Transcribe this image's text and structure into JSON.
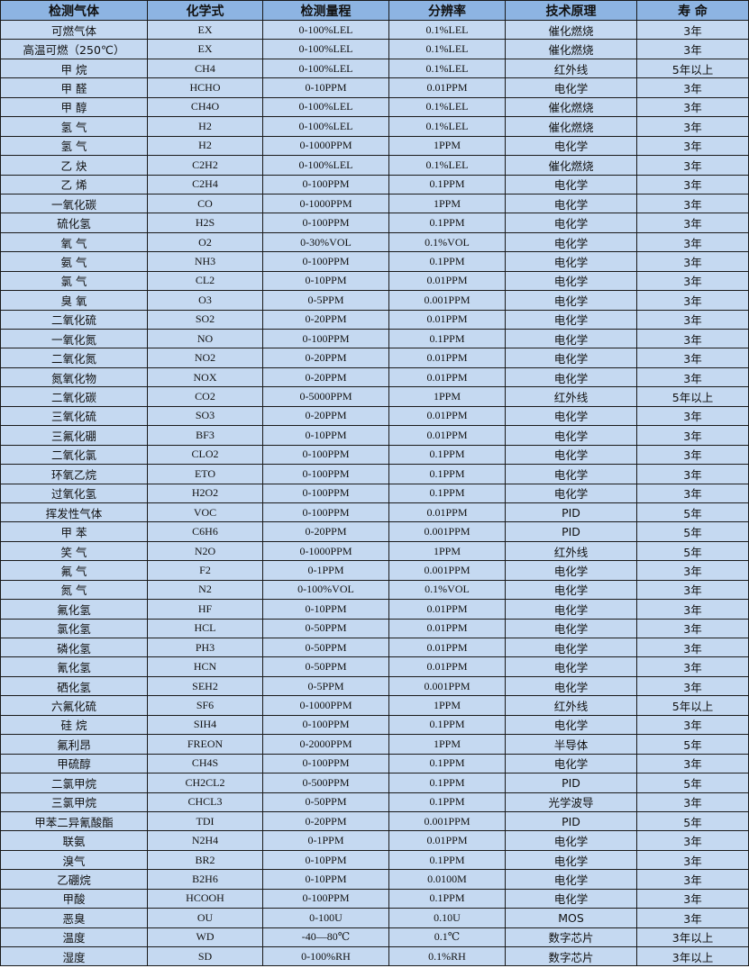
{
  "colors": {
    "header_bg": "#8db4e2",
    "row_bg": "#c5d9f1",
    "border": "#1a1a1a"
  },
  "table": {
    "headers": [
      "检测气体",
      "化学式",
      "检测量程",
      "分辨率",
      "技术原理",
      "寿 命"
    ],
    "rows": [
      [
        "可燃气体",
        "EX",
        "0-100%LEL",
        "0.1%LEL",
        "催化燃烧",
        "3年"
      ],
      [
        "高温可燃（250℃）",
        "EX",
        "0-100%LEL",
        "0.1%LEL",
        "催化燃烧",
        "3年"
      ],
      [
        "甲 烷",
        "CH4",
        "0-100%LEL",
        "0.1%LEL",
        "红外线",
        "5年以上"
      ],
      [
        "甲 醛",
        "HCHO",
        "0-10PPM",
        "0.01PPM",
        "电化学",
        "3年"
      ],
      [
        "甲 醇",
        "CH4O",
        "0-100%LEL",
        "0.1%LEL",
        "催化燃烧",
        "3年"
      ],
      [
        "氢 气",
        "H2",
        "0-100%LEL",
        "0.1%LEL",
        "催化燃烧",
        "3年"
      ],
      [
        "氢 气",
        "H2",
        "0-1000PPM",
        "1PPM",
        "电化学",
        "3年"
      ],
      [
        "乙 炔",
        "C2H2",
        "0-100%LEL",
        "0.1%LEL",
        "催化燃烧",
        "3年"
      ],
      [
        "乙 烯",
        "C2H4",
        "0-100PPM",
        "0.1PPM",
        "电化学",
        "3年"
      ],
      [
        "一氧化碳",
        "CO",
        "0-1000PPM",
        "1PPM",
        "电化学",
        "3年"
      ],
      [
        "硫化氢",
        "H2S",
        "0-100PPM",
        "0.1PPM",
        "电化学",
        "3年"
      ],
      [
        "氧 气",
        "O2",
        "0-30%VOL",
        "0.1%VOL",
        "电化学",
        "3年"
      ],
      [
        "氨 气",
        "NH3",
        "0-100PPM",
        "0.1PPM",
        "电化学",
        "3年"
      ],
      [
        "氯 气",
        "CL2",
        "0-10PPM",
        "0.01PPM",
        "电化学",
        "3年"
      ],
      [
        "臭 氧",
        "O3",
        "0-5PPM",
        "0.001PPM",
        "电化学",
        "3年"
      ],
      [
        "二氧化硫",
        "SO2",
        "0-20PPM",
        "0.01PPM",
        "电化学",
        "3年"
      ],
      [
        "一氧化氮",
        "NO",
        "0-100PPM",
        "0.1PPM",
        "电化学",
        "3年"
      ],
      [
        "二氧化氮",
        "NO2",
        "0-20PPM",
        "0.01PPM",
        "电化学",
        "3年"
      ],
      [
        "氮氧化物",
        "NOX",
        "0-20PPM",
        "0.01PPM",
        "电化学",
        "3年"
      ],
      [
        "二氧化碳",
        "CO2",
        "0-5000PPM",
        "1PPM",
        "红外线",
        "5年以上"
      ],
      [
        "三氧化硫",
        "SO3",
        "0-20PPM",
        "0.01PPM",
        "电化学",
        "3年"
      ],
      [
        "三氟化硼",
        "BF3",
        "0-10PPM",
        "0.01PPM",
        "电化学",
        "3年"
      ],
      [
        "二氧化氯",
        "CLO2",
        "0-100PPM",
        "0.1PPM",
        "电化学",
        "3年"
      ],
      [
        "环氧乙烷",
        "ETO",
        "0-100PPM",
        "0.1PPM",
        "电化学",
        "3年"
      ],
      [
        "过氧化氢",
        "H2O2",
        "0-100PPM",
        "0.1PPM",
        "电化学",
        "3年"
      ],
      [
        "挥发性气体",
        "VOC",
        "0-100PPM",
        "0.01PPM",
        "PID",
        "5年"
      ],
      [
        "甲 苯",
        "C6H6",
        "0-20PPM",
        "0.001PPM",
        "PID",
        "5年"
      ],
      [
        "笑 气",
        "N2O",
        "0-1000PPM",
        "1PPM",
        "红外线",
        "5年"
      ],
      [
        "氟 气",
        "F2",
        "0-1PPM",
        "0.001PPM",
        "电化学",
        "3年"
      ],
      [
        "氮 气",
        "N2",
        "0-100%VOL",
        "0.1%VOL",
        "电化学",
        "3年"
      ],
      [
        "氟化氢",
        "HF",
        "0-10PPM",
        "0.01PPM",
        "电化学",
        "3年"
      ],
      [
        "氯化氢",
        "HCL",
        "0-50PPM",
        "0.01PPM",
        "电化学",
        "3年"
      ],
      [
        "磷化氢",
        "PH3",
        "0-50PPM",
        "0.01PPM",
        "电化学",
        "3年"
      ],
      [
        "氰化氢",
        "HCN",
        "0-50PPM",
        "0.01PPM",
        "电化学",
        "3年"
      ],
      [
        "硒化氢",
        "SEH2",
        "0-5PPM",
        "0.001PPM",
        "电化学",
        "3年"
      ],
      [
        "六氟化硫",
        "SF6",
        "0-1000PPM",
        "1PPM",
        "红外线",
        "5年以上"
      ],
      [
        "硅 烷",
        "SIH4",
        "0-100PPM",
        "0.1PPM",
        "电化学",
        "3年"
      ],
      [
        "氟利昂",
        "FREON",
        "0-2000PPM",
        "1PPM",
        "半导体",
        "5年"
      ],
      [
        "甲硫醇",
        "CH4S",
        "0-100PPM",
        "0.1PPM",
        "电化学",
        "3年"
      ],
      [
        "二氯甲烷",
        "CH2CL2",
        "0-500PPM",
        "0.1PPM",
        "PID",
        "5年"
      ],
      [
        "三氯甲烷",
        "CHCL3",
        "0-50PPM",
        "0.1PPM",
        "光学波导",
        "3年"
      ],
      [
        "甲苯二异氰酸酯",
        "TDI",
        "0-20PPM",
        "0.001PPM",
        "PID",
        "5年"
      ],
      [
        "联氨",
        "N2H4",
        "0-1PPM",
        "0.01PPM",
        "电化学",
        "3年"
      ],
      [
        "溴气",
        "BR2",
        "0-10PPM",
        "0.1PPM",
        "电化学",
        "3年"
      ],
      [
        "乙硼烷",
        "B2H6",
        "0-10PPM",
        "0.0100M",
        "电化学",
        "3年"
      ],
      [
        "甲酸",
        "HCOOH",
        "0-100PPM",
        "0.1PPM",
        "电化学",
        "3年"
      ],
      [
        "恶臭",
        "OU",
        "0-100U",
        "0.10U",
        "MOS",
        "3年"
      ],
      [
        "温度",
        "WD",
        "-40—80℃",
        "0.1℃",
        "数字芯片",
        "3年以上"
      ],
      [
        "湿度",
        "SD",
        "0-100%RH",
        "0.1%RH",
        "数字芯片",
        "3年以上"
      ]
    ]
  }
}
